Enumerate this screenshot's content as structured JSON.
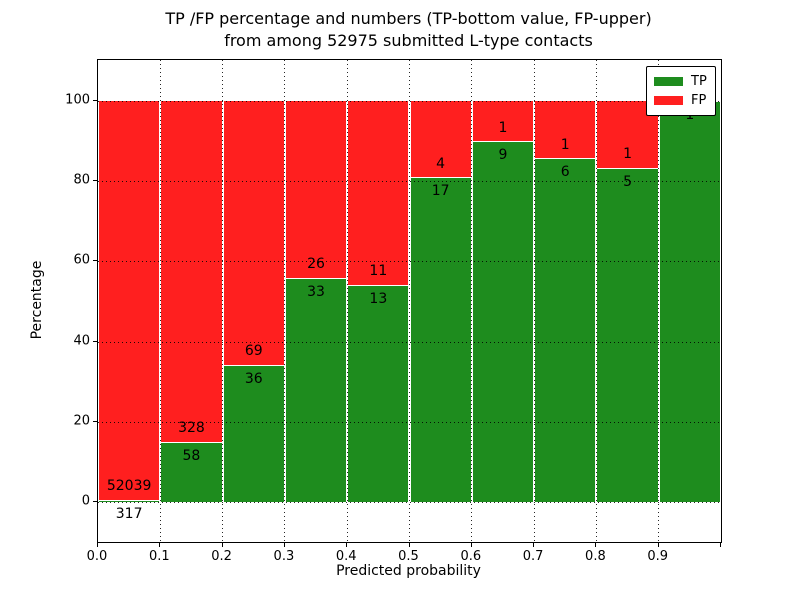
{
  "title": {
    "line1": "TP /FP percentage and numbers (TP-bottom value, FP-upper)",
    "line2": "from among 52975 submitted L-type contacts"
  },
  "chart_data": {
    "type": "bar",
    "subtype": "stacked-percentage",
    "title": "TP /FP percentage and numbers (TP-bottom value, FP-upper) from among 52975 submitted L-type contacts",
    "xlabel": "Predicted probability",
    "ylabel": "Percentage",
    "x_tick_labels": [
      "0.0",
      "0.1",
      "0.2",
      "0.3",
      "0.4",
      "0.5",
      "0.6",
      "0.7",
      "0.8",
      "0.9"
    ],
    "y_ticks": [
      0,
      20,
      40,
      60,
      80,
      100
    ],
    "xlim": [
      0.0,
      1.0
    ],
    "ylim": [
      -10,
      110
    ],
    "grid": "dotted, drawn over bars",
    "legend": {
      "position": "upper right",
      "entries": [
        {
          "label": "TP",
          "color": "#1e8c1e"
        },
        {
          "label": "FP",
          "color": "#ff1f1f"
        }
      ]
    },
    "categories": [
      "0.0-0.1",
      "0.1-0.2",
      "0.2-0.3",
      "0.3-0.4",
      "0.4-0.5",
      "0.5-0.6",
      "0.6-0.7",
      "0.7-0.8",
      "0.8-0.9",
      "0.9-1.0"
    ],
    "series": [
      {
        "name": "TP",
        "color": "#1e8c1e",
        "counts": [
          317,
          58,
          36,
          33,
          13,
          17,
          9,
          6,
          5,
          1
        ]
      },
      {
        "name": "FP",
        "color": "#ff1f1f",
        "counts": [
          52039,
          328,
          69,
          26,
          11,
          4,
          1,
          1,
          1,
          0
        ]
      }
    ],
    "tp_percentages": [
      0.61,
      15.03,
      34.29,
      55.93,
      54.17,
      80.95,
      90.0,
      85.71,
      83.33,
      100.0
    ],
    "total_contacts": 52975
  }
}
